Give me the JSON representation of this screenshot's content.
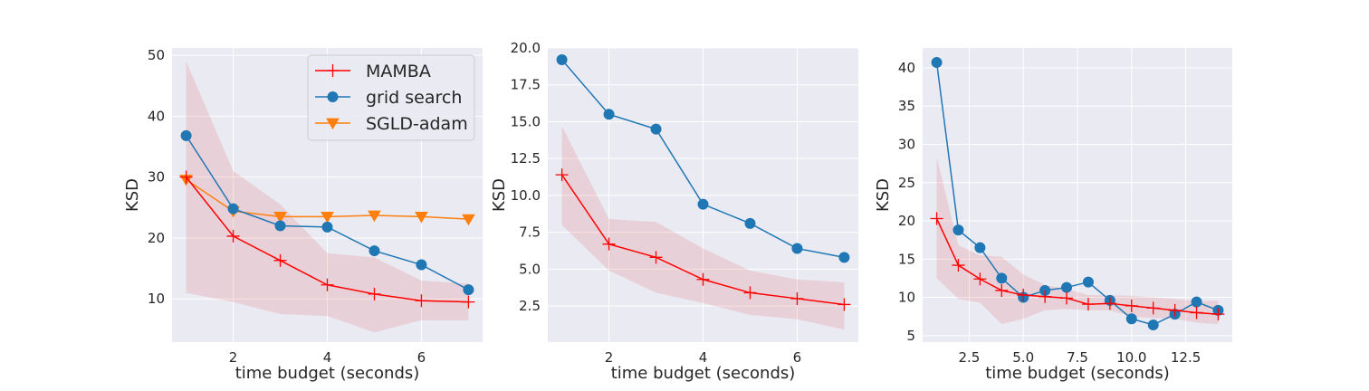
{
  "chart_data": [
    {
      "type": "line",
      "xlabel": "time budget (seconds)",
      "ylabel": "KSD",
      "xlim": [
        0.7,
        7.3
      ],
      "ylim": [
        2.9,
        51.2
      ],
      "xticks": [
        2,
        4,
        6
      ],
      "xtick_labels": [
        "2",
        "4",
        "6"
      ],
      "yticks": [
        10,
        20,
        30,
        40,
        50
      ],
      "ytick_labels": [
        "10",
        "20",
        "30",
        "40",
        "50"
      ],
      "grid": true,
      "legend": "top-right",
      "series": [
        {
          "name": "MAMBA",
          "marker": "plus",
          "color": "#ff0000",
          "x": [
            1,
            2,
            3,
            4,
            5,
            6,
            7
          ],
          "y": [
            30.0,
            20.3,
            16.3,
            12.3,
            10.8,
            9.7,
            9.5
          ],
          "band_low": [
            11.0,
            9.5,
            7.5,
            7.2,
            4.5,
            6.5,
            6.5
          ],
          "band_high": [
            49.0,
            31.0,
            25.5,
            17.5,
            16.8,
            13.0,
            12.5
          ]
        },
        {
          "name": "grid search",
          "marker": "circle",
          "color": "#1f77b4",
          "x": [
            1,
            2,
            3,
            4,
            5,
            6,
            7
          ],
          "y": [
            36.8,
            24.8,
            22.0,
            21.8,
            17.9,
            15.6,
            11.5
          ]
        },
        {
          "name": "SGLD-adam",
          "marker": "triangle-down",
          "color": "#ff7f0e",
          "x": [
            1,
            2,
            3,
            4,
            5,
            6,
            7
          ],
          "y": [
            29.6,
            24.4,
            23.5,
            23.5,
            23.7,
            23.5,
            23.1
          ]
        }
      ]
    },
    {
      "type": "line",
      "xlabel": "time budget (seconds)",
      "ylabel": "KSD",
      "xlim": [
        0.7,
        7.3
      ],
      "ylim": [
        0.05,
        20.0
      ],
      "xticks": [
        2,
        4,
        6
      ],
      "xtick_labels": [
        "2",
        "4",
        "6"
      ],
      "yticks": [
        2.5,
        5.0,
        7.5,
        10.0,
        12.5,
        15.0,
        17.5,
        20.0
      ],
      "ytick_labels": [
        "2.5",
        "5.0",
        "7.5",
        "10.0",
        "12.5",
        "15.0",
        "17.5",
        "20.0"
      ],
      "grid": true,
      "series": [
        {
          "name": "MAMBA",
          "marker": "plus",
          "color": "#ff0000",
          "x": [
            1,
            2,
            3,
            4,
            5,
            6,
            7
          ],
          "y": [
            11.4,
            6.7,
            5.8,
            4.3,
            3.4,
            3.0,
            2.6
          ],
          "band_low": [
            8.0,
            4.9,
            3.4,
            2.7,
            1.9,
            1.6,
            0.9
          ],
          "band_high": [
            14.7,
            8.4,
            8.2,
            6.4,
            4.9,
            4.3,
            4.1
          ]
        },
        {
          "name": "grid search",
          "marker": "circle",
          "color": "#1f77b4",
          "x": [
            1,
            2,
            3,
            4,
            5,
            6,
            7
          ],
          "y": [
            19.2,
            15.5,
            14.5,
            9.4,
            8.1,
            6.4,
            5.8
          ]
        }
      ]
    },
    {
      "type": "line",
      "xlabel": "time budget (seconds)",
      "ylabel": "KSD",
      "xlim": [
        0.35,
        14.65
      ],
      "ylim": [
        4.15,
        42.6
      ],
      "xticks": [
        2.5,
        5.0,
        7.5,
        10.0,
        12.5
      ],
      "xtick_labels": [
        "2.5",
        "5.0",
        "7.5",
        "10.0",
        "12.5"
      ],
      "yticks": [
        5,
        10,
        15,
        20,
        25,
        30,
        35,
        40
      ],
      "ytick_labels": [
        "5",
        "10",
        "15",
        "20",
        "25",
        "30",
        "35",
        "40"
      ],
      "grid": true,
      "series": [
        {
          "name": "MAMBA",
          "marker": "plus",
          "color": "#ff0000",
          "x": [
            1,
            2,
            3,
            4,
            5,
            6,
            7,
            8,
            9,
            10,
            11,
            12,
            13,
            14
          ],
          "y": [
            20.3,
            14.2,
            12.4,
            10.9,
            10.3,
            10.1,
            9.9,
            9.1,
            9.2,
            8.9,
            8.6,
            8.3,
            8.0,
            7.8
          ],
          "band_low": [
            12.5,
            9.8,
            9.3,
            6.5,
            7.2,
            8.3,
            8.5,
            8.3,
            8.3,
            7.5,
            7.3,
            7.2,
            6.7,
            6.5
          ],
          "band_high": [
            28.3,
            16.8,
            15.5,
            15.3,
            13.0,
            11.6,
            11.1,
            10.3,
            10.3,
            10.2,
            10.0,
            9.8,
            9.5,
            9.6
          ]
        },
        {
          "name": "grid search",
          "marker": "circle",
          "color": "#1f77b4",
          "x": [
            1,
            2,
            3,
            4,
            5,
            6,
            7,
            8,
            9,
            10,
            11,
            12,
            13,
            14
          ],
          "y": [
            40.7,
            18.8,
            16.5,
            12.5,
            10.0,
            10.9,
            11.3,
            12.0,
            9.6,
            7.2,
            6.4,
            7.8,
            9.4,
            8.3
          ]
        }
      ]
    }
  ]
}
